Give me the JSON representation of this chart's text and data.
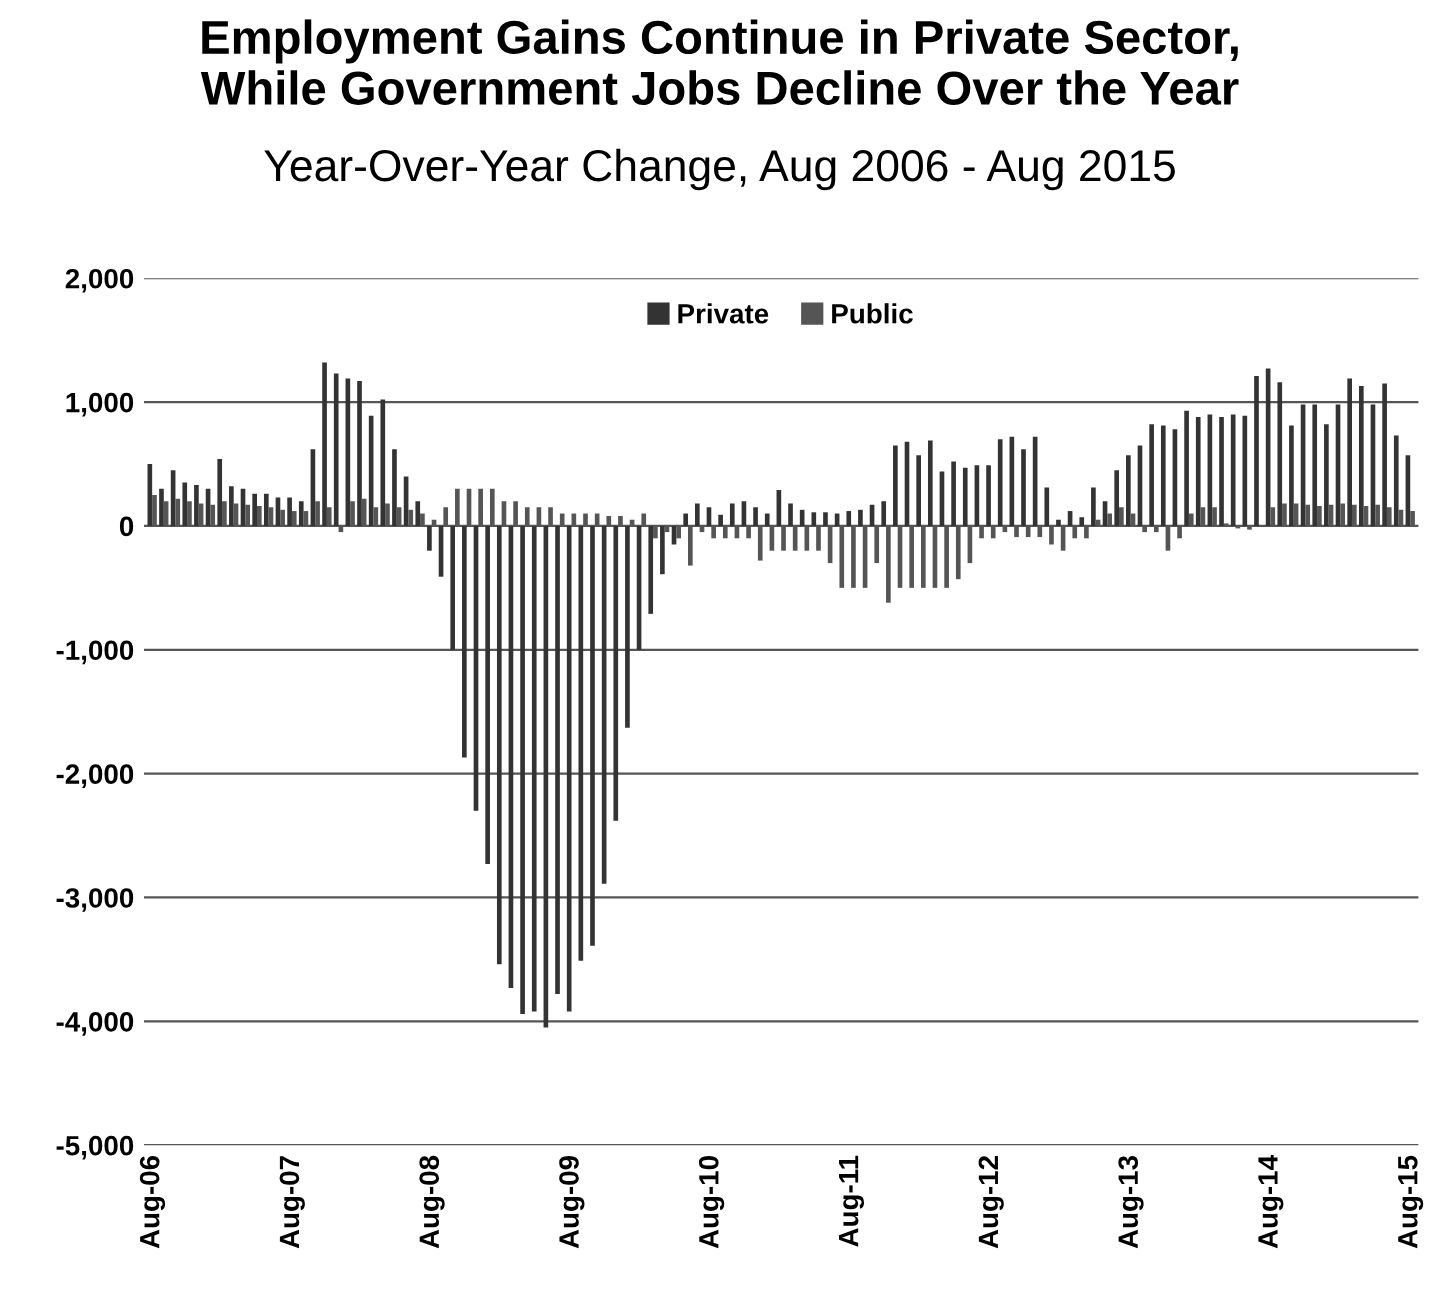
{
  "chart_data": {
    "type": "bar",
    "title": "Employment Gains Continue in Private Sector,\nWhile Government Jobs Decline Over the Year",
    "subtitle": "Year-Over-Year Change, Aug 2006 - Aug 2015",
    "categories": [
      "Aug-06",
      null,
      null,
      null,
      null,
      null,
      null,
      null,
      null,
      null,
      null,
      null,
      "Aug-07",
      null,
      null,
      null,
      null,
      null,
      null,
      null,
      null,
      null,
      null,
      null,
      "Aug-08",
      null,
      null,
      null,
      null,
      null,
      null,
      null,
      null,
      null,
      null,
      null,
      "Aug-09",
      null,
      null,
      null,
      null,
      null,
      null,
      null,
      null,
      null,
      null,
      null,
      "Aug-10",
      null,
      null,
      null,
      null,
      null,
      null,
      null,
      null,
      null,
      null,
      null,
      "Aug-11",
      null,
      null,
      null,
      null,
      null,
      null,
      null,
      null,
      null,
      null,
      null,
      "Aug-12",
      null,
      null,
      null,
      null,
      null,
      null,
      null,
      null,
      null,
      null,
      null,
      "Aug-13",
      null,
      null,
      null,
      null,
      null,
      null,
      null,
      null,
      null,
      null,
      null,
      "Aug-14",
      null,
      null,
      null,
      null,
      null,
      null,
      null,
      null,
      null,
      null,
      null,
      "Aug-15"
    ],
    "series": [
      {
        "name": "Private",
        "color": "#333333",
        "values": [
          500,
          300,
          450,
          350,
          330,
          300,
          540,
          320,
          300,
          260,
          260,
          230,
          230,
          200,
          620,
          1320,
          1230,
          1190,
          1170,
          890,
          1020,
          620,
          400,
          200,
          -200,
          -410,
          -1000,
          -1870,
          -2300,
          -2730,
          -3540,
          -3730,
          -3940,
          -3920,
          -4050,
          -3780,
          -3920,
          -3510,
          -3390,
          -2890,
          -2380,
          -1630,
          -1000,
          -710,
          -390,
          -150,
          100,
          180,
          150,
          90,
          180,
          200,
          150,
          100,
          290,
          180,
          130,
          110,
          110,
          100,
          120,
          130,
          170,
          200,
          650,
          680,
          570,
          690,
          440,
          520,
          470,
          490,
          490,
          700,
          720,
          620,
          720,
          310,
          50,
          120,
          70,
          310,
          200,
          450,
          570,
          650,
          820,
          810,
          780,
          930,
          880,
          900,
          880,
          900,
          890,
          1210,
          1270,
          1160,
          810,
          980,
          980,
          820,
          980,
          1190,
          1130,
          980,
          1150,
          730,
          570
        ]
      },
      {
        "name": "Public",
        "color": "#555555",
        "values": [
          250,
          200,
          220,
          200,
          180,
          170,
          200,
          180,
          170,
          160,
          150,
          130,
          120,
          120,
          200,
          150,
          -50,
          200,
          220,
          150,
          180,
          150,
          130,
          100,
          50,
          150,
          300,
          300,
          300,
          300,
          200,
          200,
          150,
          150,
          150,
          100,
          100,
          100,
          100,
          80,
          80,
          50,
          100,
          -100,
          -50,
          -100,
          -320,
          -50,
          -100,
          -100,
          -100,
          -100,
          -280,
          -200,
          -200,
          -200,
          -200,
          -200,
          -300,
          -500,
          -500,
          -500,
          -300,
          -620,
          -500,
          -500,
          -500,
          -500,
          -500,
          -430,
          -300,
          -100,
          -100,
          -50,
          -90,
          -90,
          -90,
          -150,
          -200,
          -100,
          -100,
          50,
          100,
          150,
          100,
          -50,
          -50,
          -200,
          -100,
          100,
          150,
          150,
          20,
          -20,
          -30,
          0,
          150,
          180,
          180,
          170,
          160,
          170,
          180,
          170,
          160,
          170,
          150,
          130,
          120
        ]
      }
    ],
    "ylim": [
      -5000,
      2000
    ],
    "yticks": [
      {
        "value": -5000,
        "label": "-5,000"
      },
      {
        "value": -4000,
        "label": "-4,000"
      },
      {
        "value": -3000,
        "label": "-3,000"
      },
      {
        "value": -2000,
        "label": "-2,000"
      },
      {
        "value": -1000,
        "label": "-1,000"
      },
      0,
      {
        "value": 1000,
        "label": "1,000"
      },
      {
        "value": 2000,
        "label": "2,000"
      }
    ],
    "grid": "y",
    "legend": "top"
  }
}
